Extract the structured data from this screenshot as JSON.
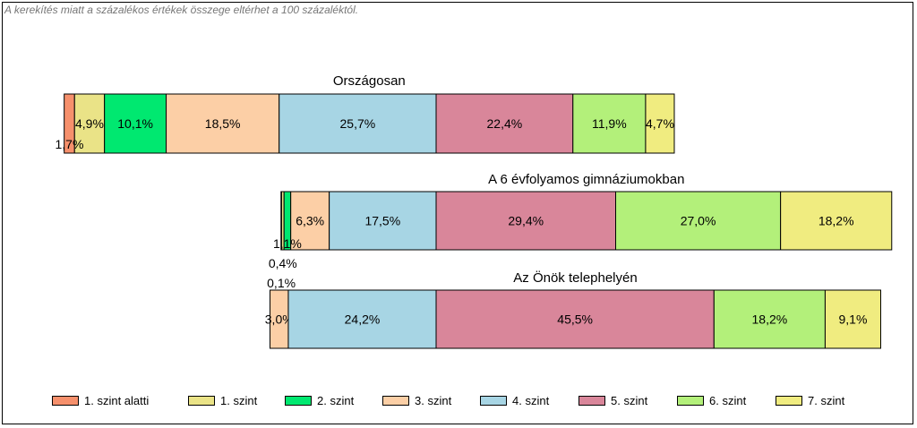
{
  "note": "A kerekítés miatt a  százalékos értékek összege eltérhet a 100 százaléktól.",
  "chart_data": {
    "type": "bar",
    "stacked": true,
    "orientation": "horizontal",
    "categories": [
      "1. szint alatti",
      "1. szint",
      "2. szint",
      "3. szint",
      "4. szint",
      "5. szint",
      "6. szint",
      "7. szint"
    ],
    "colors": [
      "#F6906C",
      "#EAE387",
      "#00E870",
      "#FCCFA6",
      "#A7D5E4",
      "#D9869A",
      "#B3F07A",
      "#F0EC80"
    ],
    "bars": [
      {
        "title": "Országosan",
        "values": [
          1.7,
          4.9,
          10.1,
          18.5,
          25.7,
          22.4,
          11.9,
          4.7
        ],
        "labels": [
          "1,7%",
          "4,9%",
          "10,1%",
          "18,5%",
          "25,7%",
          "22,4%",
          "11,9%",
          "4,7%"
        ]
      },
      {
        "title": "A 6 évfolyamos gimnáziumokban",
        "values": [
          0.1,
          0.4,
          1.1,
          6.3,
          17.5,
          29.4,
          27.0,
          18.2
        ],
        "labels": [
          "0,1%",
          "0,4%",
          "1,1%",
          "6,3%",
          "17,5%",
          "29,4%",
          "27,0%",
          "18,2%"
        ]
      },
      {
        "title": "Az Önök telephelyén",
        "values": [
          0,
          0,
          0,
          3.0,
          24.2,
          45.5,
          18.2,
          9.1
        ],
        "labels": [
          "",
          "",
          "",
          "3,0%",
          "24,2%",
          "45,5%",
          "18,2%",
          "9,1%"
        ]
      }
    ],
    "legend": "bottom",
    "grid": false
  }
}
